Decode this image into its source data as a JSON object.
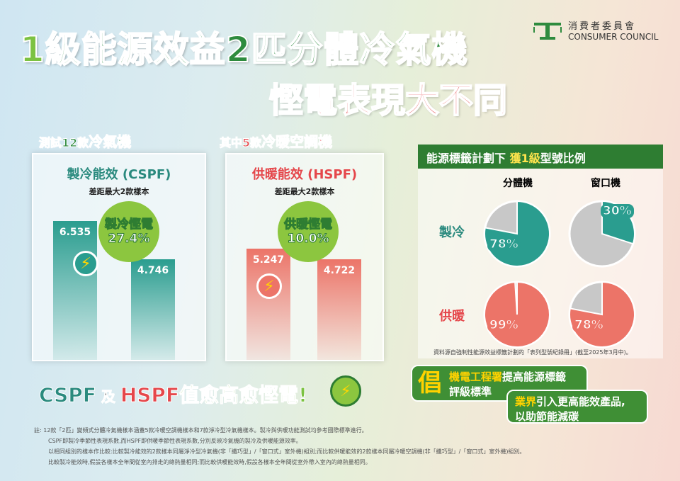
{
  "title": {
    "one": "1",
    "rest": "級能源效益2匹分體冷氣機",
    "subtitle": "慳電表現大不同"
  },
  "logo": {
    "zh": "消費者委員會",
    "en": "CONSUMER COUNCIL"
  },
  "cooling": {
    "heading_a": "測試12款",
    "heading_b": "冷氣機",
    "panel_title": "製冷能效 (CSPF)",
    "panel_sub": "差距最大2款樣本",
    "badge_line1": "製冷慳電",
    "badge_line2": "27.4%",
    "color": "#2a9d8f"
  },
  "heating": {
    "heading_a": "其中5款",
    "heading_b": "冷暖空調機",
    "panel_title": "供暖能效 (HSPF)",
    "panel_sub": "差距最大2款樣本",
    "badge_line1": "供暖慳電",
    "badge_line2": "10.0%",
    "color": "#ec7468"
  },
  "chart_data": [
    {
      "type": "bar",
      "title": "製冷能效 (CSPF)",
      "values": [
        6.535,
        4.746
      ],
      "labels": [
        "6.535",
        "4.746"
      ]
    },
    {
      "type": "bar",
      "title": "供暖能效 (HSPF)",
      "values": [
        5.247,
        4.722
      ],
      "labels": [
        "5.247",
        "4.722"
      ]
    },
    {
      "type": "pie",
      "title": "能源標籤計劃下獲1級型號比例",
      "columns": [
        "分體機",
        "窗口機"
      ],
      "rows": [
        "製冷",
        "供暖"
      ],
      "values": [
        [
          78,
          30
        ],
        [
          99,
          78
        ]
      ],
      "labels": [
        [
          "78%",
          "30%"
        ],
        [
          "99%",
          "78%"
        ]
      ]
    }
  ],
  "ratio": {
    "header_a": "能源標籤計劃下 ",
    "header_b": "獲1級",
    "header_c": "型號比例",
    "col1": "分體機",
    "col2": "窗口機",
    "row1": "製冷",
    "row2": "供暖",
    "source": "資料源自強制性能源效益標籤計劃的「表列型號紀錄冊」(截至2025年3月中)。"
  },
  "slogan": {
    "a": "CSPF",
    "b": " 及 ",
    "c": "HSPF",
    "d": "值愈高愈慳電!"
  },
  "advocate": {
    "char": "倡",
    "b1_hl": "機電工程署",
    "b1_rest": "提高能源標籤",
    "b1_l2": "評級標準",
    "b2_hl": "業界",
    "b2_rest": "引入更高能效產品,",
    "b2_l2": "以助節能減碳"
  },
  "notes": [
    "註: 12款「2匹」變頻式分體冷氣機樣本涵蓋5款冷暖空調機樣本和7款淨冷型冷氣機樣本。製冷與供暖功能測試均參考國際標準進行。",
    "CSPF即製冷季節性表現系數,而HSPF即供暖季節性表現系數,分別反映冷氣機的製冷及供暖能源效率。",
    "以相同組別的樣本作比較:比較製冷能效的2款樣本同屬淨冷型冷氣機(非「纖巧型」/「窗口式」室外機)組別;而比較供暖能效的2款樣本同屬冷暖空調機(非「纖巧型」/「窗口式」室外機)組別。",
    "比較製冷能效時,假設各樣本全年間從室內排走的總熱量相同;而比較供暖能效時,假設各樣本全年間從室外帶入室內的總熱量相同。"
  ]
}
